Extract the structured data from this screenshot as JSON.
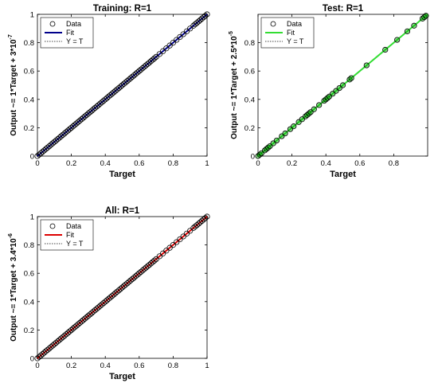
{
  "chart_data": [
    {
      "type": "scatter",
      "title": "Training: R=1",
      "xlabel": "Target",
      "ylabel": "Output ~= 1*Target + 3*10",
      "ylabel_exp": "-7",
      "xlim": [
        0,
        1
      ],
      "ylim": [
        0,
        1
      ],
      "xticks": [
        "0",
        "0.2",
        "0.4",
        "0.6",
        "0.8",
        "1"
      ],
      "yticks": [
        "0",
        "0.2",
        "0.4",
        "0.6",
        "0.8",
        "1"
      ],
      "legend": {
        "position": "top-left",
        "entries": [
          "Data",
          "Fit",
          "Y = T"
        ]
      },
      "fit_color": "#00008b",
      "marker_fill": "none",
      "points": [
        0,
        0.01,
        0.02,
        0.03,
        0.04,
        0.05,
        0.06,
        0.07,
        0.08,
        0.09,
        0.1,
        0.11,
        0.12,
        0.13,
        0.14,
        0.15,
        0.16,
        0.17,
        0.18,
        0.19,
        0.2,
        0.21,
        0.22,
        0.23,
        0.24,
        0.25,
        0.26,
        0.27,
        0.28,
        0.29,
        0.3,
        0.31,
        0.32,
        0.33,
        0.34,
        0.35,
        0.36,
        0.37,
        0.38,
        0.39,
        0.4,
        0.41,
        0.42,
        0.43,
        0.44,
        0.45,
        0.46,
        0.47,
        0.48,
        0.49,
        0.5,
        0.51,
        0.52,
        0.53,
        0.54,
        0.55,
        0.56,
        0.57,
        0.58,
        0.59,
        0.6,
        0.61,
        0.62,
        0.63,
        0.64,
        0.65,
        0.66,
        0.67,
        0.68,
        0.69,
        0.7,
        0.72,
        0.74,
        0.76,
        0.78,
        0.8,
        0.82,
        0.84,
        0.86,
        0.88,
        0.9,
        0.92,
        0.93,
        0.94,
        0.95,
        0.96,
        0.97,
        0.98,
        0.99,
        1
      ],
      "fit": {
        "slope": 1,
        "intercept": 3e-07
      }
    },
    {
      "type": "scatter",
      "title": "Test: R=1",
      "xlabel": "Target",
      "ylabel": "Output ~= 1*Target + 2.5*10",
      "ylabel_exp": "-5",
      "xlim": [
        0,
        1
      ],
      "ylim": [
        0,
        1
      ],
      "xticks": [
        "0",
        "0.2",
        "0.4",
        "0.6",
        "0.8"
      ],
      "yticks": [
        "0",
        "0.2",
        "0.4",
        "0.6",
        "0.8"
      ],
      "legend": {
        "position": "top-left",
        "entries": [
          "Data",
          "Fit",
          "Y = T"
        ]
      },
      "fit_color": "#33dd33",
      "marker_fill": "rgba(0,170,0,0.45)",
      "points": [
        0,
        0.01,
        0.02,
        0.04,
        0.05,
        0.06,
        0.07,
        0.09,
        0.11,
        0.14,
        0.16,
        0.19,
        0.21,
        0.24,
        0.26,
        0.28,
        0.29,
        0.3,
        0.31,
        0.33,
        0.36,
        0.39,
        0.4,
        0.41,
        0.42,
        0.44,
        0.46,
        0.48,
        0.5,
        0.54,
        0.55,
        0.64,
        0.75,
        0.82,
        0.88,
        0.92,
        0.97,
        0.98,
        0.99
      ],
      "fit": {
        "slope": 1,
        "intercept": 2.5e-05
      }
    },
    {
      "type": "scatter",
      "title": "All: R=1",
      "xlabel": "Target",
      "ylabel": "Output ~= 1*Target + 3.4*10",
      "ylabel_exp": "-6",
      "xlim": [
        0,
        1
      ],
      "ylim": [
        0,
        1
      ],
      "xticks": [
        "0",
        "0.2",
        "0.4",
        "0.6",
        "0.8",
        "1"
      ],
      "yticks": [
        "0",
        "0.2",
        "0.4",
        "0.6",
        "0.8",
        "1"
      ],
      "legend": {
        "position": "top-left",
        "entries": [
          "Data",
          "Fit",
          "Y = T"
        ]
      },
      "fit_color": "#dd0000",
      "marker_fill": "none",
      "points": [
        0,
        0.01,
        0.02,
        0.03,
        0.04,
        0.05,
        0.06,
        0.07,
        0.08,
        0.09,
        0.1,
        0.11,
        0.12,
        0.13,
        0.14,
        0.15,
        0.16,
        0.17,
        0.18,
        0.19,
        0.2,
        0.21,
        0.22,
        0.23,
        0.24,
        0.25,
        0.26,
        0.27,
        0.28,
        0.29,
        0.3,
        0.31,
        0.32,
        0.33,
        0.34,
        0.35,
        0.36,
        0.37,
        0.38,
        0.39,
        0.4,
        0.41,
        0.42,
        0.43,
        0.44,
        0.45,
        0.46,
        0.47,
        0.48,
        0.49,
        0.5,
        0.51,
        0.52,
        0.53,
        0.54,
        0.55,
        0.56,
        0.57,
        0.58,
        0.59,
        0.6,
        0.61,
        0.62,
        0.63,
        0.64,
        0.65,
        0.66,
        0.67,
        0.68,
        0.69,
        0.7,
        0.72,
        0.74,
        0.76,
        0.78,
        0.8,
        0.82,
        0.84,
        0.86,
        0.88,
        0.9,
        0.92,
        0.93,
        0.94,
        0.95,
        0.96,
        0.97,
        0.98,
        0.99,
        1
      ],
      "fit": {
        "slope": 1,
        "intercept": 3.4e-06
      }
    }
  ]
}
